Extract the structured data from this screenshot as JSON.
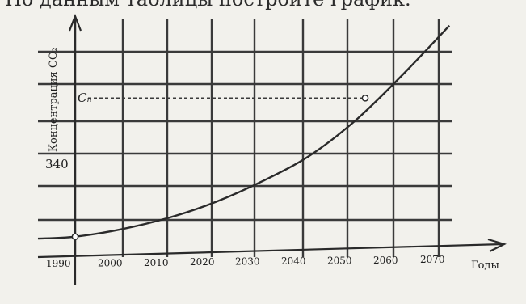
{
  "header": {
    "caption": "По данным таблицы постройте график."
  },
  "chart_data": {
    "type": "line",
    "xlabel": "Годы",
    "ylabel": "Концентрация CO₂",
    "x_ticks": [
      1990,
      2000,
      2010,
      2020,
      2030,
      2040,
      2050,
      2060,
      2070
    ],
    "y_marks": [
      {
        "label": "340",
        "value": 340
      },
      {
        "label": "Cₙ",
        "value": 560
      }
    ],
    "series": [
      {
        "x": [
          1990,
          2000,
          2010,
          2020,
          2030,
          2040,
          2050,
          2060,
          2070
        ],
        "y": [
          340,
          352,
          370,
          395,
          428,
          468,
          525,
          597,
          675
        ]
      }
    ],
    "highlight_points": [
      {
        "x": 1990,
        "y": 340
      },
      {
        "x": 2052,
        "y": 560
      }
    ],
    "reference_line": {
      "y": 560,
      "x_from": 1990,
      "x_to": 2052,
      "style": "dashed"
    },
    "xlim": [
      1990,
      2071
    ],
    "ylim": [
      305,
      690
    ],
    "grid": true
  }
}
